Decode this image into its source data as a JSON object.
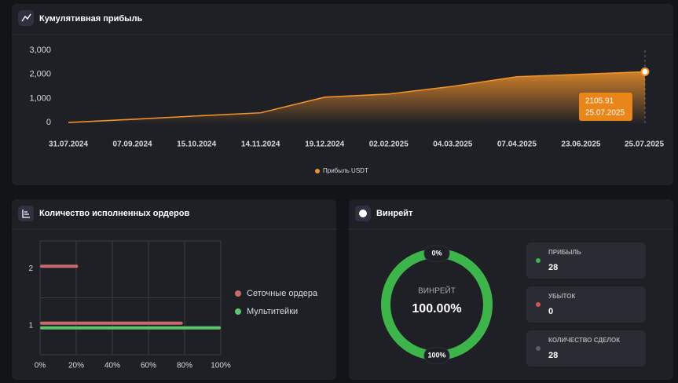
{
  "chart_data": [
    {
      "type": "line",
      "title": "Кумулятивная прибыль",
      "categories": [
        "31.07.2024",
        "07.09.2024",
        "15.10.2024",
        "14.11.2024",
        "19.12.2024",
        "02.02.2025",
        "04.03.2025",
        "07.04.2025",
        "23.06.2025",
        "25.07.2025"
      ],
      "series": [
        {
          "name": "Прибыль USDT",
          "color": "#f0922a",
          "values": [
            0,
            130,
            270,
            400,
            1050,
            1180,
            1500,
            1900,
            2000,
            2105.91
          ]
        }
      ],
      "ylim": [
        -400,
        3000
      ],
      "yticks": [
        0,
        {
          "value": 1000,
          "label": "1,000"
        },
        {
          "value": 2000,
          "label": "2,000"
        },
        {
          "value": 3000,
          "label": "3,000"
        }
      ],
      "grid": false,
      "legend": "bottom"
    },
    {
      "type": "hbar",
      "title": "Количество исполненных ордеров",
      "categories": [
        "1",
        "2"
      ],
      "series": [
        {
          "name": "Сеточные ордера",
          "color": "#c96a6a",
          "values": [
            79,
            21
          ]
        },
        {
          "name": "Мультитейки",
          "color": "#5cc46a",
          "values": [
            100,
            null
          ]
        }
      ],
      "xlim": [
        0,
        100
      ],
      "xticks": [
        {
          "value": 0,
          "label": "0%"
        },
        {
          "value": 20,
          "label": "20%"
        },
        {
          "value": 40,
          "label": "40%"
        },
        {
          "value": 60,
          "label": "60%"
        },
        {
          "value": 80,
          "label": "80%"
        },
        {
          "value": 100,
          "label": "100%"
        }
      ],
      "grid": true,
      "legend": "right"
    },
    {
      "type": "donut",
      "title": "Винрейт",
      "center_label": "ВИНРЕЙТ",
      "values": [
        100
      ],
      "value_labels": [
        "100.00%"
      ],
      "color": "#3db54a",
      "ticks": [
        {
          "value": 0,
          "label": "0%"
        },
        {
          "value": 100,
          "label": "100%"
        }
      ],
      "stats": [
        {
          "label": "ПРИБЫЛЬ",
          "value": 28,
          "color": "#3db54a"
        },
        {
          "label": "УБЫТОК",
          "value": 0,
          "color": "#d9534f"
        },
        {
          "label": "КОЛИЧЕСТВО СДЕЛОК",
          "value": 28,
          "color": "#5a5d66"
        }
      ]
    }
  ]
}
